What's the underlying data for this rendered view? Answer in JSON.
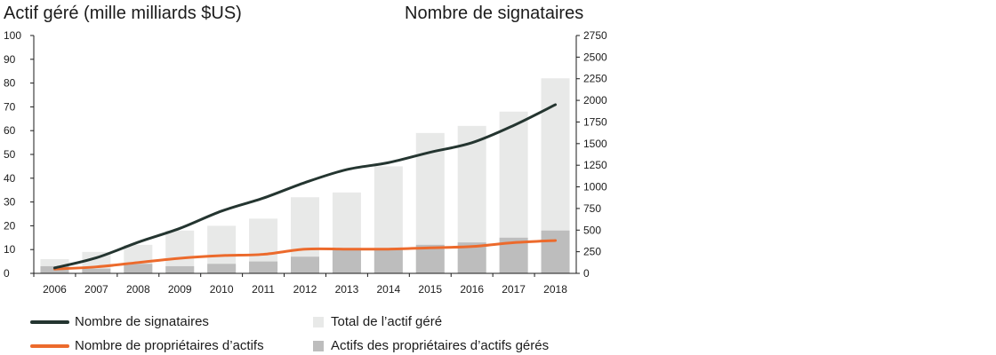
{
  "chart_data": {
    "type": "bar",
    "title_left": "Actif géré (mille milliards $US)",
    "title_right": "Nombre de signataires",
    "categories": [
      "2006",
      "2007",
      "2008",
      "2009",
      "2010",
      "2011",
      "2012",
      "2013",
      "2014",
      "2015",
      "2016",
      "2017",
      "2018"
    ],
    "y_left": {
      "range": [
        0,
        100
      ],
      "ticks": [
        0,
        10,
        20,
        30,
        40,
        50,
        60,
        70,
        80,
        90,
        100
      ]
    },
    "y_right": {
      "range": [
        0,
        2750
      ],
      "ticks": [
        0,
        250,
        500,
        750,
        1000,
        1250,
        1500,
        1750,
        2000,
        2250,
        2500,
        2750
      ]
    },
    "series": [
      {
        "name": "Total de l’actif géré",
        "kind": "bar",
        "axis": "left",
        "color": "#e8e9e8",
        "values": [
          6,
          9,
          12,
          18,
          20,
          23,
          32,
          34,
          45,
          59,
          62,
          68,
          82
        ]
      },
      {
        "name": "Actifs des propriétaires d’actifs gérés",
        "kind": "bar",
        "axis": "left",
        "color": "#bdbdbd",
        "values": [
          3,
          2,
          4,
          3,
          4,
          5,
          7,
          10,
          10,
          12,
          13,
          15,
          18
        ]
      },
      {
        "name": "Nombre de signataires",
        "kind": "line",
        "axis": "right",
        "color": "#243530",
        "values": [
          63,
          180,
          360,
          520,
          720,
          870,
          1050,
          1200,
          1280,
          1400,
          1510,
          1710,
          1950
        ]
      },
      {
        "name": "Nombre de propriétaires d’actifs",
        "kind": "line",
        "axis": "right",
        "color": "#ec6a2c",
        "values": [
          50,
          75,
          125,
          175,
          205,
          220,
          280,
          280,
          280,
          295,
          310,
          355,
          380
        ]
      }
    ],
    "legend": {
      "placement": "bottom",
      "items": [
        {
          "label": "Nombre de signataires",
          "kind": "line",
          "color": "#243530"
        },
        {
          "label": "Total de l’actif géré",
          "kind": "box",
          "color": "#e8e9e8"
        },
        {
          "label": "Nombre de propriétaires d’actifs",
          "kind": "line",
          "color": "#ec6a2c"
        },
        {
          "label": "Actifs des propriétaires d’actifs gérés",
          "kind": "box",
          "color": "#bdbdbd"
        }
      ]
    }
  }
}
